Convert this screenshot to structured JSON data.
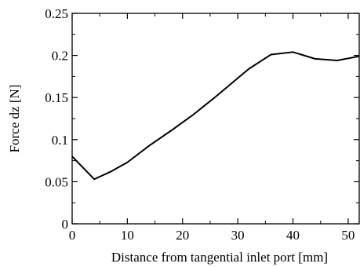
{
  "chart_data": {
    "type": "line",
    "title": "",
    "xlabel": "Distance from tangential inlet port [mm]",
    "ylabel": "Force dz [N]",
    "xlim": [
      0,
      52
    ],
    "ylim": [
      0,
      0.25
    ],
    "xticks": [
      0,
      10,
      20,
      30,
      40,
      50
    ],
    "xtick_labels": [
      "0",
      "10",
      "20",
      "30",
      "40",
      "50"
    ],
    "yticks": [
      0,
      0.05,
      0.1,
      0.15,
      0.2,
      0.25
    ],
    "ytick_labels": [
      "0",
      "0.05",
      "0.1",
      "0.15",
      "0.2",
      "0.25"
    ],
    "grid": false,
    "legend": "none",
    "series": [
      {
        "color": "#000000",
        "x": [
          0,
          4,
          7,
          10,
          14,
          18,
          22,
          26,
          30,
          32,
          36,
          40,
          44,
          48,
          52
        ],
        "y": [
          0.08,
          0.053,
          0.062,
          0.073,
          0.093,
          0.111,
          0.13,
          0.151,
          0.173,
          0.184,
          0.201,
          0.204,
          0.196,
          0.194,
          0.199
        ]
      }
    ]
  }
}
